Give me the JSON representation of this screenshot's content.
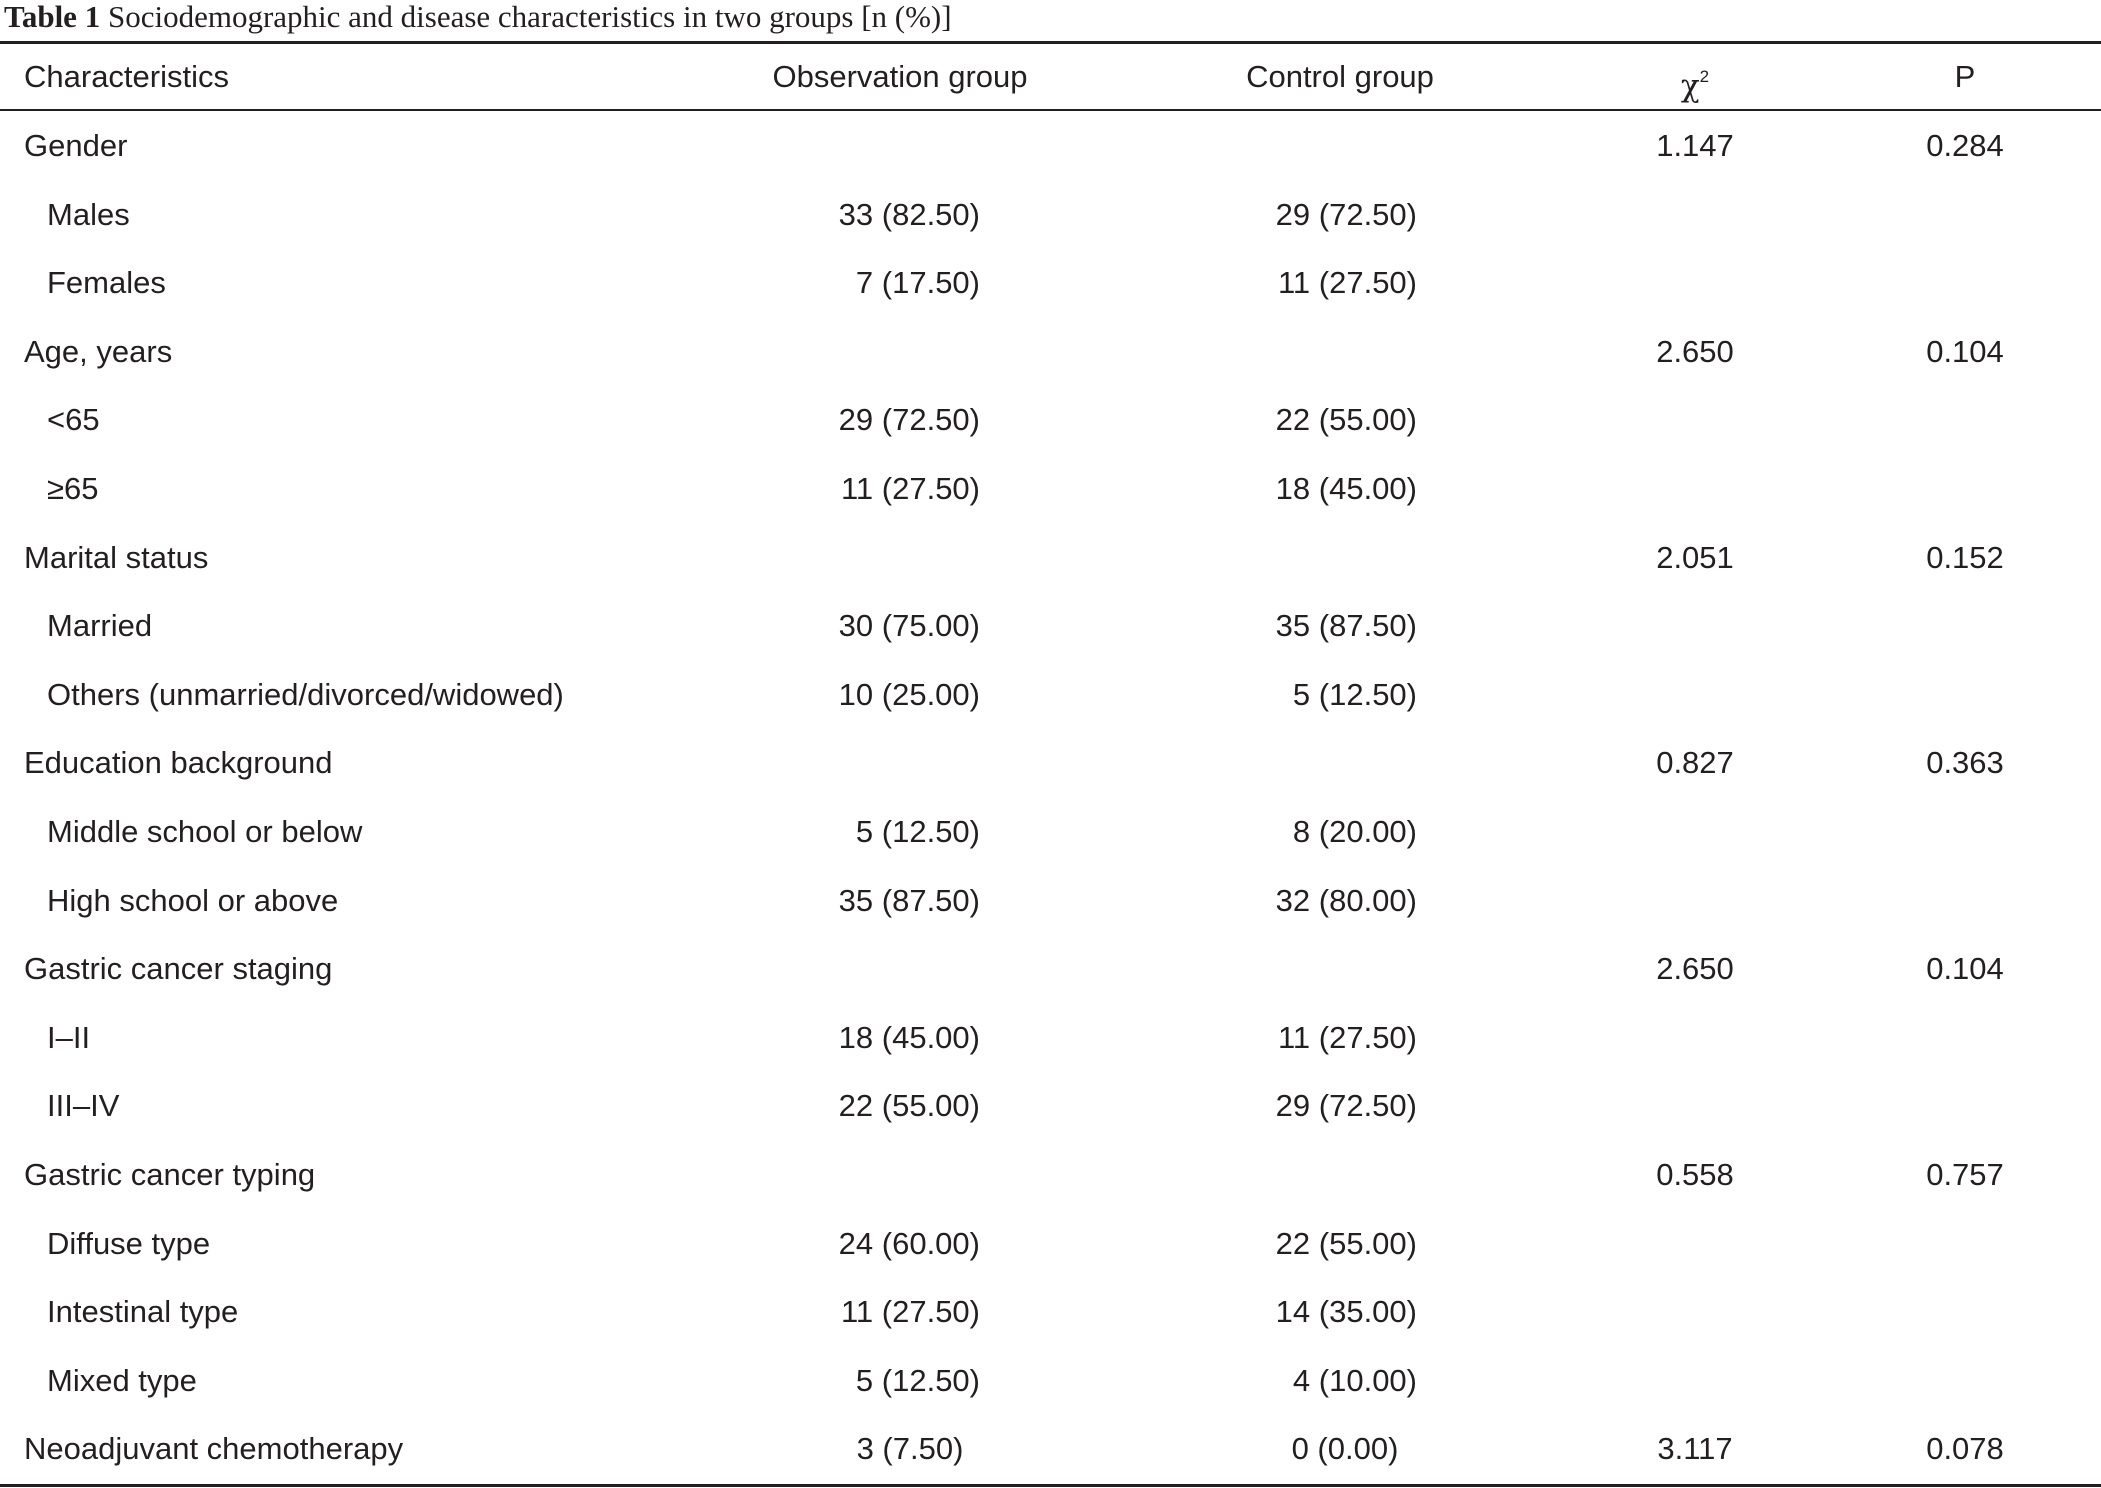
{
  "caption": {
    "label": "Table 1",
    "text": " Sociodemographic and disease characteristics in two groups [n (%)]"
  },
  "header": {
    "characteristics": "Characteristics",
    "observation": "Observation group",
    "control": "Control group",
    "chi_symbol": "χ",
    "chi_superscript": "2",
    "p": "P"
  },
  "rows": [
    {
      "characteristic": "Gender",
      "observation": "",
      "control": "",
      "chi2": "1.147",
      "p": "0.284"
    },
    {
      "characteristic": "Males",
      "observation": "33 (82.50)",
      "control": "29 (72.50)",
      "chi2": "",
      "p": ""
    },
    {
      "characteristic": "Females",
      "observation": "7 (17.50)",
      "control": "11 (27.50)",
      "chi2": "",
      "p": ""
    },
    {
      "characteristic": "Age, years",
      "observation": "",
      "control": "",
      "chi2": "2.650",
      "p": "0.104"
    },
    {
      "characteristic": "<65",
      "observation": "29 (72.50)",
      "control": "22 (55.00)",
      "chi2": "",
      "p": ""
    },
    {
      "characteristic": "≥65",
      "observation": "11 (27.50)",
      "control": "18 (45.00)",
      "chi2": "",
      "p": ""
    },
    {
      "characteristic": "Marital status",
      "observation": "",
      "control": "",
      "chi2": "2.051",
      "p": "0.152"
    },
    {
      "characteristic": "Married",
      "observation": "30 (75.00)",
      "control": "35 (87.50)",
      "chi2": "",
      "p": ""
    },
    {
      "characteristic": "Others (unmarried/divorced/widowed)",
      "observation": "10 (25.00)",
      "control": "5 (12.50)",
      "chi2": "",
      "p": ""
    },
    {
      "characteristic": "Education background",
      "observation": "",
      "control": "",
      "chi2": "0.827",
      "p": "0.363"
    },
    {
      "characteristic": "Middle school or below",
      "observation": "5 (12.50)",
      "control": "8 (20.00)",
      "chi2": "",
      "p": ""
    },
    {
      "characteristic": "High school or above",
      "observation": "35 (87.50)",
      "control": "32 (80.00)",
      "chi2": "",
      "p": ""
    },
    {
      "characteristic": "Gastric cancer staging",
      "observation": "",
      "control": "",
      "chi2": "2.650",
      "p": "0.104"
    },
    {
      "characteristic": "I–II",
      "observation": "18 (45.00)",
      "control": "11 (27.50)",
      "chi2": "",
      "p": ""
    },
    {
      "characteristic": "III–IV",
      "observation": "22 (55.00)",
      "control": "29 (72.50)",
      "chi2": "",
      "p": ""
    },
    {
      "characteristic": "Gastric cancer typing",
      "observation": "",
      "control": "",
      "chi2": "0.558",
      "p": "0.757"
    },
    {
      "characteristic": "Diffuse type",
      "observation": "24 (60.00)",
      "control": "22 (55.00)",
      "chi2": "",
      "p": ""
    },
    {
      "characteristic": "Intestinal type",
      "observation": "11 (27.50)",
      "control": "14 (35.00)",
      "chi2": "",
      "p": ""
    },
    {
      "characteristic": "Mixed type",
      "observation": "5 (12.50)",
      "control": "4 (10.00)",
      "chi2": "",
      "p": ""
    },
    {
      "characteristic": "Neoadjuvant chemotherapy",
      "observation": "3 (7.50)",
      "control": "0 (0.00)",
      "chi2": "3.117",
      "p": "0.078"
    }
  ]
}
